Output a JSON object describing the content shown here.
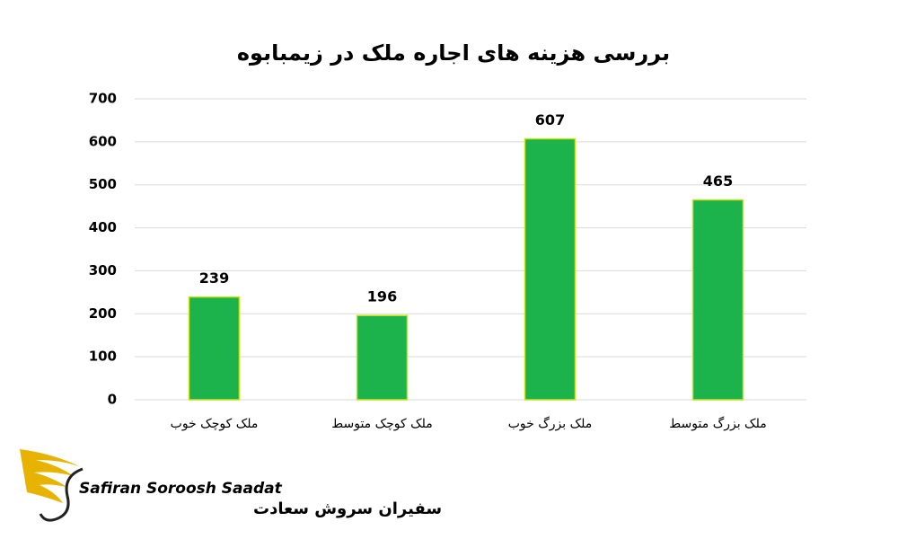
{
  "chart_data": {
    "type": "bar",
    "title": "بررسی هزینه های اجاره ملک در زیمبابوه",
    "categories": [
      "ملک کوچک خوب",
      "ملک کوچک متوسط",
      "ملک بزرگ خوب",
      "ملک بزرگ متوسط"
    ],
    "values": [
      239,
      196,
      607,
      465
    ],
    "color": "#1db34c",
    "ylim": [
      0,
      700
    ],
    "yticks": [
      0,
      100,
      200,
      300,
      400,
      500,
      600,
      700
    ],
    "grid": true
  },
  "logo": {
    "name_en": "Safiran Soroosh Saadat",
    "name_fa": "سفیران سروش سعادت"
  }
}
